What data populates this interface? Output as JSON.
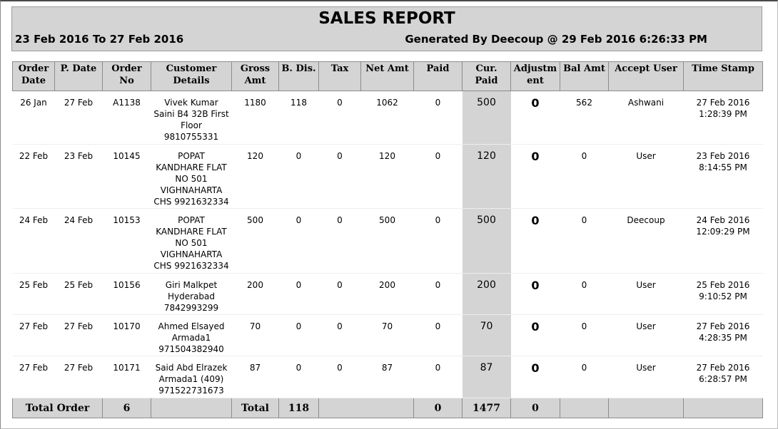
{
  "report": {
    "title": "SALES REPORT",
    "date_range": "23 Feb 2016 To 27 Feb 2016",
    "generated": "Generated By Deecoup @ 29 Feb 2016 6:26:33 PM"
  },
  "columns": [
    [
      "Order",
      "Date"
    ],
    [
      "P. Date"
    ],
    [
      "Order",
      "No"
    ],
    [
      "Customer",
      "Details"
    ],
    [
      "Gross",
      "Amt"
    ],
    [
      "B. Dis."
    ],
    [
      "Tax"
    ],
    [
      "Net Amt"
    ],
    [
      "Paid"
    ],
    [
      "Cur.",
      "Paid"
    ],
    [
      "Adjustm",
      "ent"
    ],
    [
      "Bal Amt"
    ],
    [
      "Accept User"
    ],
    [
      "Time Stamp"
    ]
  ],
  "rows": [
    {
      "order_date": "26 Jan",
      "p_date": "27 Feb",
      "order_no": "A1138",
      "customer": [
        "Vivek Kumar",
        "Saini B4 32B First",
        "Floor",
        "9810755331"
      ],
      "gross": "1180",
      "discount": "118",
      "tax": "0",
      "net": "1062",
      "paid": "0",
      "cur_paid": "500",
      "adjustment": "0",
      "balance": "562",
      "user": "Ashwani",
      "timestamp": [
        "27 Feb 2016",
        "1:28:39 PM"
      ]
    },
    {
      "order_date": "22 Feb",
      "p_date": "23 Feb",
      "order_no": "10145",
      "customer": [
        "POPAT",
        "KANDHARE FLAT",
        "NO 501",
        "VIGHNAHARTA",
        "CHS 9921632334"
      ],
      "gross": "120",
      "discount": "0",
      "tax": "0",
      "net": "120",
      "paid": "0",
      "cur_paid": "120",
      "adjustment": "0",
      "balance": "0",
      "user": "User",
      "timestamp": [
        "23 Feb 2016",
        "8:14:55 PM"
      ]
    },
    {
      "order_date": "24 Feb",
      "p_date": "24 Feb",
      "order_no": "10153",
      "customer": [
        "POPAT",
        "KANDHARE FLAT",
        "NO 501",
        "VIGHNAHARTA",
        "CHS 9921632334"
      ],
      "gross": "500",
      "discount": "0",
      "tax": "0",
      "net": "500",
      "paid": "0",
      "cur_paid": "500",
      "adjustment": "0",
      "balance": "0",
      "user": "Deecoup",
      "timestamp": [
        "24 Feb 2016",
        "12:09:29 PM"
      ]
    },
    {
      "order_date": "25 Feb",
      "p_date": "25 Feb",
      "order_no": "10156",
      "customer": [
        "Giri Malkpet",
        "Hyderabad",
        "7842993299"
      ],
      "gross": "200",
      "discount": "0",
      "tax": "0",
      "net": "200",
      "paid": "0",
      "cur_paid": "200",
      "adjustment": "0",
      "balance": "0",
      "user": "User",
      "timestamp": [
        "25 Feb 2016",
        "9:10:52 PM"
      ]
    },
    {
      "order_date": "27 Feb",
      "p_date": "27 Feb",
      "order_no": "10170",
      "customer": [
        "Ahmed Elsayed",
        "Armada1",
        "971504382940"
      ],
      "gross": "70",
      "discount": "0",
      "tax": "0",
      "net": "70",
      "paid": "0",
      "cur_paid": "70",
      "adjustment": "0",
      "balance": "0",
      "user": "User",
      "timestamp": [
        "27 Feb 2016",
        "4:28:35 PM"
      ]
    },
    {
      "order_date": "27 Feb",
      "p_date": "27 Feb",
      "order_no": "10171",
      "customer": [
        "Said Abd Elrazek",
        "Armada1 (409)",
        "971522731673"
      ],
      "gross": "87",
      "discount": "0",
      "tax": "0",
      "net": "87",
      "paid": "0",
      "cur_paid": "87",
      "adjustment": "0",
      "balance": "0",
      "user": "User",
      "timestamp": [
        "27 Feb 2016",
        "6:28:57 PM"
      ]
    }
  ],
  "totals": {
    "label": "Total Order",
    "order_count": "6",
    "total_label": "Total",
    "discount": "118",
    "paid": "0",
    "cur_paid": "1477",
    "adjustment": "0"
  }
}
